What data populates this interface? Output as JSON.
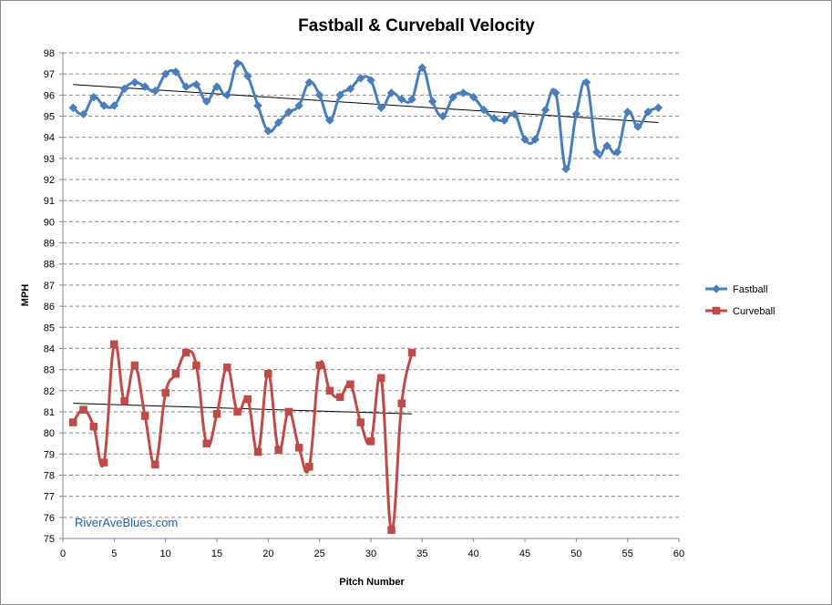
{
  "chart_data": {
    "type": "line",
    "title": "Fastball & Curveball Velocity",
    "xlabel": "Pitch Number",
    "ylabel": "MPH",
    "xlim": [
      0,
      60
    ],
    "ylim": [
      75,
      98
    ],
    "x_ticks": [
      0,
      5,
      10,
      15,
      20,
      25,
      30,
      35,
      40,
      45,
      50,
      55,
      60
    ],
    "y_ticks": [
      75,
      76,
      77,
      78,
      79,
      80,
      81,
      82,
      83,
      84,
      85,
      86,
      87,
      88,
      89,
      90,
      91,
      92,
      93,
      94,
      95,
      96,
      97,
      98
    ],
    "grid": "horizontal dashed",
    "legend": "right",
    "watermark": "RiverAveBlues.com",
    "series": [
      {
        "name": "Fastball",
        "color": "#4a7ebb",
        "marker": "diamond",
        "smooth": true,
        "x": [
          1,
          2,
          3,
          4,
          5,
          6,
          7,
          8,
          9,
          10,
          11,
          12,
          13,
          14,
          15,
          16,
          17,
          18,
          19,
          20,
          21,
          22,
          23,
          24,
          25,
          26,
          27,
          28,
          29,
          30,
          31,
          32,
          33,
          34,
          35,
          36,
          37,
          38,
          39,
          40,
          41,
          42,
          43,
          44,
          45,
          46,
          47,
          48,
          49,
          50,
          51,
          52,
          53,
          54,
          55,
          56,
          57,
          58
        ],
        "values": [
          95.4,
          95.1,
          95.9,
          95.5,
          95.5,
          96.3,
          96.6,
          96.4,
          96.2,
          97.0,
          97.1,
          96.4,
          96.5,
          95.7,
          96.4,
          96.0,
          97.5,
          96.9,
          95.5,
          94.3,
          94.7,
          95.2,
          95.5,
          96.6,
          96.0,
          94.8,
          96.0,
          96.3,
          96.8,
          96.7,
          95.4,
          96.1,
          95.8,
          95.8,
          97.3,
          95.7,
          95.0,
          95.9,
          96.1,
          95.9,
          95.3,
          94.9,
          94.8,
          95.1,
          93.9,
          93.9,
          95.3,
          96.1,
          92.5,
          95.1,
          96.6,
          93.3,
          93.6,
          93.3,
          95.2,
          94.5,
          95.2,
          95.4
        ],
        "trendline": [
          [
            1,
            96.5
          ],
          [
            58,
            94.7
          ]
        ]
      },
      {
        "name": "Curveball",
        "color": "#be4b48",
        "marker": "square",
        "smooth": true,
        "x": [
          1,
          2,
          3,
          4,
          5,
          6,
          7,
          8,
          9,
          10,
          11,
          12,
          13,
          14,
          15,
          16,
          17,
          18,
          19,
          20,
          21,
          22,
          23,
          24,
          25,
          26,
          27,
          28,
          29,
          30,
          31,
          32,
          33,
          34
        ],
        "values": [
          80.5,
          81.1,
          80.3,
          78.6,
          84.2,
          81.5,
          83.2,
          80.8,
          78.5,
          81.9,
          82.8,
          83.8,
          83.2,
          79.5,
          80.9,
          83.1,
          81.0,
          81.6,
          79.1,
          82.8,
          79.2,
          81.0,
          79.3,
          78.4,
          83.2,
          82.0,
          81.7,
          82.3,
          80.5,
          79.6,
          82.6,
          75.4,
          81.4,
          83.8
        ],
        "trendline": [
          [
            1,
            81.4
          ],
          [
            34,
            80.9
          ]
        ]
      }
    ]
  }
}
